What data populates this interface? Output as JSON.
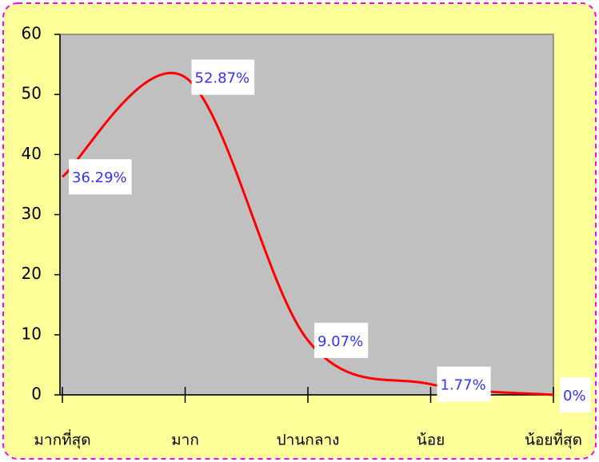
{
  "chart_data": {
    "type": "line",
    "categories": [
      "มากที่สุด",
      "มาก",
      "ปานกลาง",
      "น้อย",
      "น้อยที่สุด"
    ],
    "series": [
      {
        "color": "#ff0000",
        "values": [
          36.29,
          52.87,
          9.07,
          1.77,
          0
        ],
        "value_labels": [
          "36.29%",
          "52.87%",
          "9.07%",
          "1.77%",
          "0%"
        ]
      }
    ],
    "ylim": [
      0,
      60
    ],
    "yticks": [
      0,
      10,
      20,
      30,
      40,
      50,
      60
    ],
    "smooth": true,
    "background": "#ffff99",
    "plot_background": "#c0c0c0",
    "label_color": "#3333ff"
  }
}
